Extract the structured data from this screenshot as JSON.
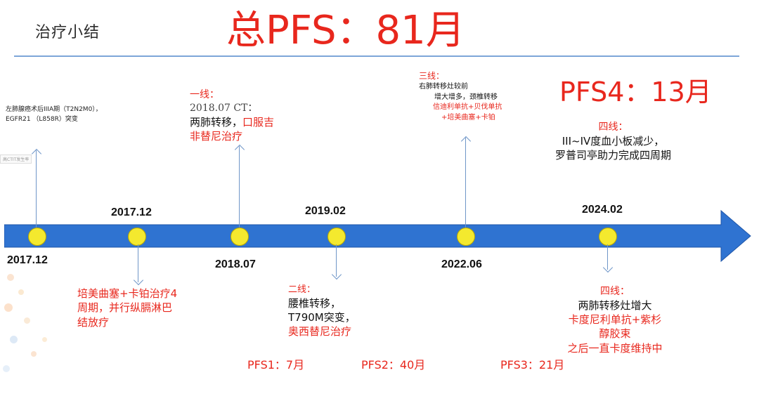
{
  "header": {
    "section_title": "治疗小结",
    "total_pfs": "总PFS：81月",
    "pfs4": "PFS4：13月"
  },
  "timeline": {
    "dates": {
      "d1_bottom": "2017.12",
      "d2_top": "2017.12",
      "d3_bottom": "2018.07",
      "d4_top": "2019.02",
      "d5_bottom": "2022.06",
      "d6_top": "2024.02"
    }
  },
  "notes": {
    "diagnosis": {
      "line1": "左肺腺癌术后IIIA期（T2N2M0），",
      "line2": "EGFR21 （L858R）突变"
    },
    "mini_label": "高CTIT发生率",
    "first_line": {
      "title": "一线：",
      "date": "2018.07 CT：",
      "body_black": "两肺转移，",
      "body_red_a": "口服吉",
      "body_red_b": "非替尼治疗"
    },
    "adjuvant": {
      "line1": "培美曲塞+卡铂治疗4",
      "line2": "周期，并行纵膈淋巴",
      "line3": "结放疗"
    },
    "second_line": {
      "title": "二线：",
      "line1": "腰椎转移，",
      "line2": "T790M突变，",
      "line3": "奥西替尼治疗"
    },
    "third_line": {
      "title": "三线：",
      "line1": "右肺转移灶较前",
      "line2": "增大增多，颈椎转移",
      "line3": "信迪利单抗+贝伐单抗",
      "line4": "+培美曲塞+卡铂"
    },
    "fourth_line_top": {
      "title": "四线：",
      "line1": "III~IV度血小板减少，",
      "line2": "罗普司亭助力完成四周期"
    },
    "fourth_line_bottom": {
      "title": "四线：",
      "line1": "两肺转移灶增大",
      "line2": "卡度尼利单抗+紫杉",
      "line3": "醇胶束",
      "line4": "之后一直卡度维持中"
    }
  },
  "pfs": {
    "pfs1": "PFS1：7月",
    "pfs2": "PFS2：40月",
    "pfs3": "PFS3：21月"
  },
  "colors": {
    "accent_red": "#e8271d",
    "timeline_blue": "#2f73d1",
    "node_yellow": "#f4e92e"
  }
}
